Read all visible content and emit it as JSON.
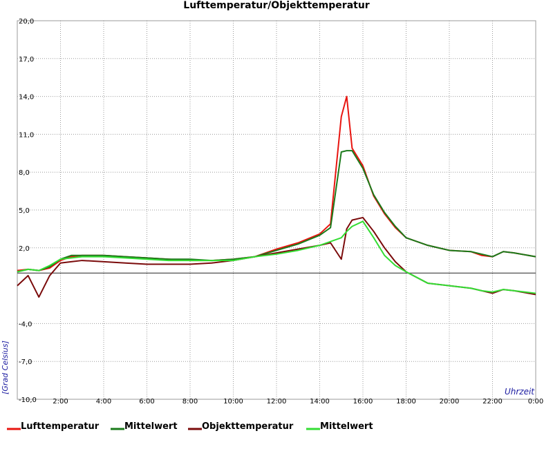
{
  "chart_data": {
    "type": "line",
    "title": "Lufttemperatur/Objekttemperatur",
    "y_label": "[Grad Celsius]",
    "x_label": "Uhrzeit",
    "x": [
      0,
      0.5,
      1,
      1.5,
      2,
      2.5,
      3,
      4,
      5,
      6,
      7,
      8,
      9,
      10,
      11,
      12,
      13,
      14,
      14.5,
      15,
      15.25,
      15.5,
      16,
      16.5,
      17,
      17.5,
      18,
      19,
      20,
      21,
      21.5,
      22,
      22.5,
      23,
      24
    ],
    "series": [
      {
        "name": "Lufttemperatur",
        "color": "#e8140f",
        "values": [
          0.2,
          0.3,
          0.2,
          0.4,
          1.0,
          1.3,
          1.4,
          1.4,
          1.3,
          1.2,
          1.1,
          1.0,
          1.0,
          1.1,
          1.3,
          1.9,
          2.4,
          3.1,
          3.9,
          12.4,
          14.0,
          9.9,
          8.5,
          6.1,
          4.7,
          3.6,
          2.8,
          2.2,
          1.8,
          1.7,
          1.4,
          1.3,
          1.7,
          1.6,
          1.3
        ]
      },
      {
        "name": "Mittelwert",
        "color": "#1a7a1a",
        "values": [
          0.1,
          0.3,
          0.2,
          0.5,
          1.1,
          1.4,
          1.4,
          1.4,
          1.3,
          1.2,
          1.1,
          1.1,
          1.0,
          1.1,
          1.3,
          1.8,
          2.3,
          3.0,
          3.6,
          9.6,
          9.7,
          9.7,
          8.3,
          6.2,
          4.8,
          3.7,
          2.8,
          2.2,
          1.8,
          1.7,
          1.5,
          1.3,
          1.7,
          1.6,
          1.3
        ]
      },
      {
        "name": "Objekttemperatur",
        "color": "#7a0a0a",
        "values": [
          -1.0,
          -0.2,
          -1.9,
          -0.2,
          0.8,
          0.9,
          1.0,
          0.9,
          0.8,
          0.7,
          0.7,
          0.7,
          0.8,
          1.0,
          1.3,
          1.6,
          1.9,
          2.2,
          2.4,
          1.1,
          3.5,
          4.2,
          4.4,
          3.3,
          2.0,
          0.9,
          0.1,
          -0.8,
          -1.0,
          -1.2,
          -1.4,
          -1.6,
          -1.3,
          -1.4,
          -1.7
        ]
      },
      {
        "name": "Mittelwert",
        "color": "#33dd33",
        "values": [
          0.1,
          0.3,
          0.2,
          0.6,
          1.1,
          1.2,
          1.3,
          1.3,
          1.2,
          1.1,
          1.0,
          1.0,
          1.0,
          1.0,
          1.3,
          1.5,
          1.8,
          2.2,
          2.5,
          2.8,
          3.3,
          3.7,
          4.1,
          2.8,
          1.4,
          0.6,
          0.1,
          -0.8,
          -1.0,
          -1.2,
          -1.4,
          -1.5,
          -1.3,
          -1.4,
          -1.6
        ]
      }
    ],
    "xlim": [
      0,
      24
    ],
    "xticks": [
      {
        "value": 2,
        "label": "2:00"
      },
      {
        "value": 4,
        "label": "4:00"
      },
      {
        "value": 6,
        "label": "6:00"
      },
      {
        "value": 8,
        "label": "8:00"
      },
      {
        "value": 10,
        "label": "10:00"
      },
      {
        "value": 12,
        "label": "12:00"
      },
      {
        "value": 14,
        "label": "14:00"
      },
      {
        "value": 16,
        "label": "16:00"
      },
      {
        "value": 18,
        "label": "18:00"
      },
      {
        "value": 20,
        "label": "20:00"
      },
      {
        "value": 22,
        "label": "22:00"
      },
      {
        "value": 24,
        "label": "0:00"
      }
    ],
    "ylim": [
      -10,
      20
    ],
    "yticks": [
      {
        "value": -10,
        "label": "-10,0"
      },
      {
        "value": -7,
        "label": "-7,0"
      },
      {
        "value": -4,
        "label": "-4,0"
      },
      {
        "value": 2,
        "label": "2,0"
      },
      {
        "value": 5,
        "label": "5,0"
      },
      {
        "value": 8,
        "label": "8,0"
      },
      {
        "value": 11,
        "label": "11,0"
      },
      {
        "value": 14,
        "label": "14,0"
      },
      {
        "value": 17,
        "label": "17,0"
      },
      {
        "value": 20,
        "label": "20,0"
      }
    ],
    "reference_line": 0,
    "grid": true
  }
}
